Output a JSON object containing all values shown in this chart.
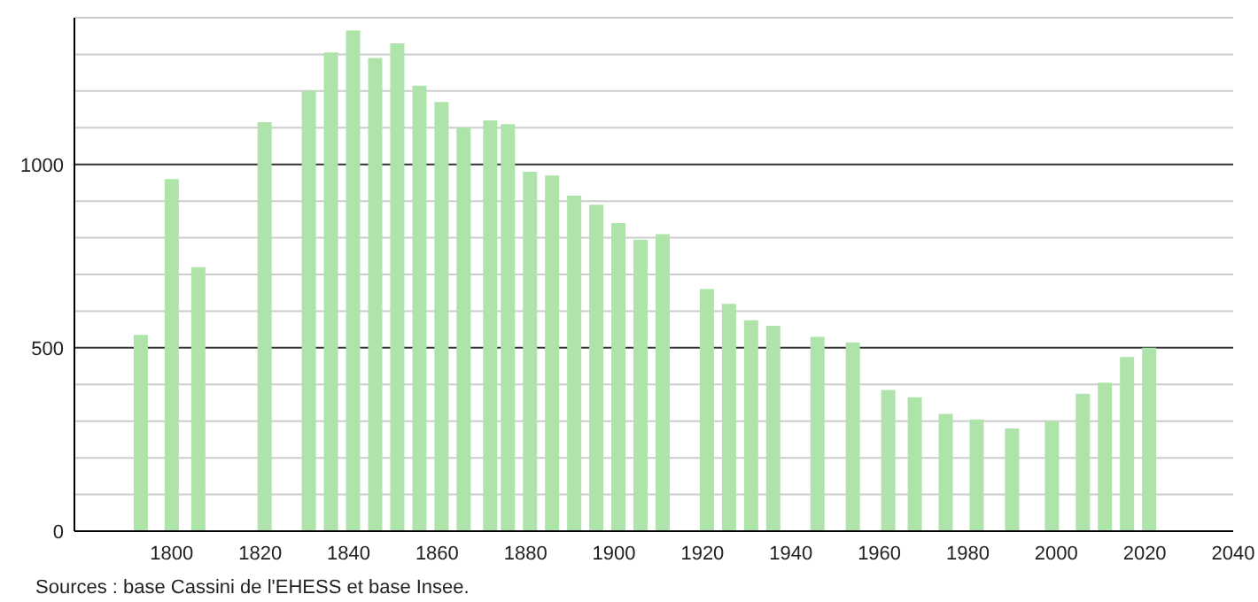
{
  "chart_data": {
    "type": "bar",
    "x": [
      1793,
      1800,
      1806,
      1821,
      1831,
      1836,
      1841,
      1846,
      1851,
      1856,
      1861,
      1866,
      1872,
      1876,
      1881,
      1886,
      1891,
      1896,
      1901,
      1906,
      1911,
      1921,
      1926,
      1931,
      1936,
      1946,
      1954,
      1962,
      1968,
      1975,
      1982,
      1990,
      1999,
      2006,
      2011,
      2016,
      2021
    ],
    "values": [
      535,
      960,
      720,
      1115,
      1200,
      1305,
      1365,
      1290,
      1330,
      1215,
      1170,
      1100,
      1120,
      1110,
      980,
      970,
      915,
      890,
      840,
      795,
      810,
      660,
      620,
      575,
      560,
      530,
      515,
      385,
      365,
      320,
      305,
      280,
      300,
      375,
      405,
      475,
      500
    ],
    "color": "#aee3aa",
    "xlim": [
      1778,
      2040
    ],
    "xticks": [
      1800,
      1820,
      1840,
      1860,
      1880,
      1900,
      1920,
      1940,
      1960,
      1980,
      2000,
      2020,
      2040
    ],
    "ylim": [
      0,
      1400
    ],
    "yticks": [
      0,
      {
        "value": 100,
        "label": null
      },
      {
        "value": 200,
        "label": null
      },
      {
        "value": 300,
        "label": null
      },
      {
        "value": 400,
        "label": null
      },
      500,
      {
        "value": 600,
        "label": null
      },
      {
        "value": 700,
        "label": null
      },
      {
        "value": 800,
        "label": null
      },
      {
        "value": 900,
        "label": null
      },
      1000,
      {
        "value": 1100,
        "label": null
      },
      {
        "value": 1200,
        "label": null
      },
      {
        "value": 1300,
        "label": null
      },
      {
        "value": 1400,
        "label": null
      }
    ],
    "grid": "y",
    "annotations": [
      "Sources : base Cassini de l'EHESS et base Insee."
    ]
  }
}
